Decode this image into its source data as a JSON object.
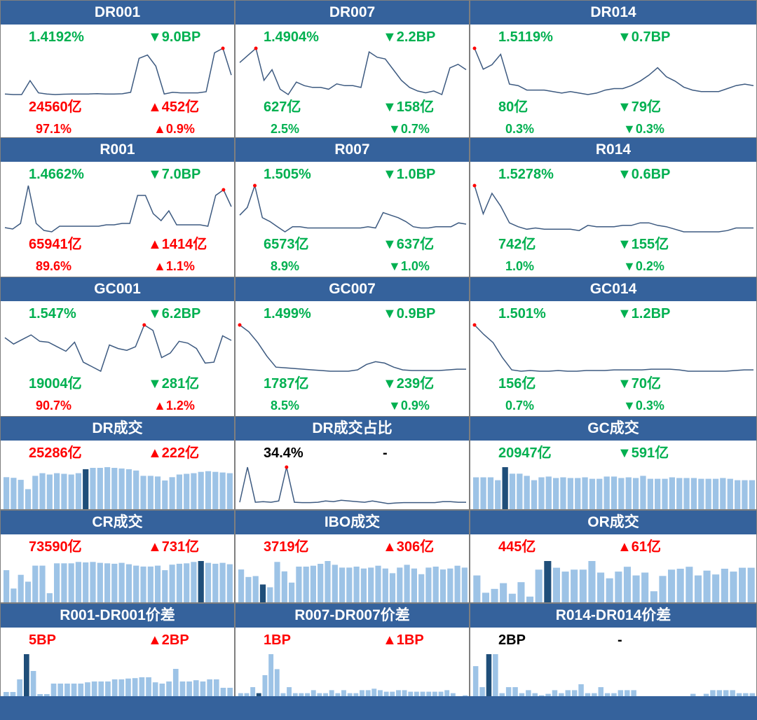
{
  "colors": {
    "header_bg": "#35629c",
    "up": "#ff0000",
    "down": "#00b050",
    "line": "#3d5a80",
    "bar": "#9dc3e6",
    "bar_highlight": "#1f4e79",
    "marker": "#ff0000"
  },
  "rate_panels": [
    {
      "title": "DR001",
      "rate": "1.4192%",
      "rate_change": "▼9.0BP",
      "volume": "24560亿",
      "volume_change": "▲452亿",
      "share": "97.1%",
      "share_change": "▲0.9%",
      "rate_color": "down",
      "change_color": "down",
      "volume_color": "up",
      "volume_change_color": "up",
      "share_color": "up",
      "share_change_color": "up"
    },
    {
      "title": "DR007",
      "rate": "1.4904%",
      "rate_change": "▼2.2BP",
      "volume": "627亿",
      "volume_change": "▼158亿",
      "share": "2.5%",
      "share_change": "▼0.7%",
      "rate_color": "down",
      "change_color": "down",
      "volume_color": "down",
      "volume_change_color": "down",
      "share_color": "down",
      "share_change_color": "down"
    },
    {
      "title": "DR014",
      "rate": "1.5119%",
      "rate_change": "▼0.7BP",
      "volume": "80亿",
      "volume_change": "▼79亿",
      "share": "0.3%",
      "share_change": "▼0.3%",
      "rate_color": "down",
      "change_color": "down",
      "volume_color": "down",
      "volume_change_color": "down",
      "share_color": "down",
      "share_change_color": "down"
    },
    {
      "title": "R001",
      "rate": "1.4662%",
      "rate_change": "▼7.0BP",
      "volume": "65941亿",
      "volume_change": "▲1414亿",
      "share": "89.6%",
      "share_change": "▲1.1%",
      "rate_color": "down",
      "change_color": "down",
      "volume_color": "up",
      "volume_change_color": "up",
      "share_color": "up",
      "share_change_color": "up"
    },
    {
      "title": "R007",
      "rate": "1.505%",
      "rate_change": "▼1.0BP",
      "volume": "6573亿",
      "volume_change": "▼637亿",
      "share": "8.9%",
      "share_change": "▼1.0%",
      "rate_color": "down",
      "change_color": "down",
      "volume_color": "down",
      "volume_change_color": "down",
      "share_color": "down",
      "share_change_color": "down"
    },
    {
      "title": "R014",
      "rate": "1.5278%",
      "rate_change": "▼0.6BP",
      "volume": "742亿",
      "volume_change": "▼155亿",
      "share": "1.0%",
      "share_change": "▼0.2%",
      "rate_color": "down",
      "change_color": "down",
      "volume_color": "down",
      "volume_change_color": "down",
      "share_color": "down",
      "share_change_color": "down"
    },
    {
      "title": "GC001",
      "rate": "1.547%",
      "rate_change": "▼6.2BP",
      "volume": "19004亿",
      "volume_change": "▼281亿",
      "share": "90.7%",
      "share_change": "▲1.2%",
      "rate_color": "down",
      "change_color": "down",
      "volume_color": "down",
      "volume_change_color": "down",
      "share_color": "up",
      "share_change_color": "up"
    },
    {
      "title": "GC007",
      "rate": "1.499%",
      "rate_change": "▼0.9BP",
      "volume": "1787亿",
      "volume_change": "▼239亿",
      "share": "8.5%",
      "share_change": "▼0.9%",
      "rate_color": "down",
      "change_color": "down",
      "volume_color": "down",
      "volume_change_color": "down",
      "share_color": "down",
      "share_change_color": "down"
    },
    {
      "title": "GC014",
      "rate": "1.501%",
      "rate_change": "▼1.2BP",
      "volume": "156亿",
      "volume_change": "▼70亿",
      "share": "0.7%",
      "share_change": "▼0.3%",
      "rate_color": "down",
      "change_color": "down",
      "volume_color": "down",
      "volume_change_color": "down",
      "share_color": "down",
      "share_change_color": "down"
    }
  ],
  "volume_panels": [
    {
      "title": "DR成交",
      "value": "25286亿",
      "change": "▲222亿",
      "value_color": "up",
      "change_color": "up"
    },
    {
      "title": "DR成交占比",
      "value": "34.4%",
      "change": "-",
      "value_color": "blk",
      "change_color": "blk"
    },
    {
      "title": "GC成交",
      "value": "20947亿",
      "change": "▼591亿",
      "value_color": "down",
      "change_color": "down"
    },
    {
      "title": "CR成交",
      "value": "73590亿",
      "change": "▲731亿",
      "value_color": "up",
      "change_color": "up"
    },
    {
      "title": "IBO成交",
      "value": "3719亿",
      "change": "▲306亿",
      "value_color": "up",
      "change_color": "up"
    },
    {
      "title": "OR成交",
      "value": "445亿",
      "change": "▲61亿",
      "value_color": "up",
      "change_color": "up"
    },
    {
      "title": "R001-DR001价差",
      "value": "5BP",
      "change": "▲2BP",
      "value_color": "up",
      "change_color": "up"
    },
    {
      "title": "R007-DR007价差",
      "value": "1BP",
      "change": "▲1BP",
      "value_color": "up",
      "change_color": "up"
    },
    {
      "title": "R014-DR014价差",
      "value": "2BP",
      "change": "-",
      "value_color": "blk",
      "change_color": "blk"
    }
  ],
  "chart_data": [
    {
      "type": "line",
      "name": "DR001",
      "values": [
        1.43,
        1.425,
        1.425,
        1.55,
        1.44,
        1.43,
        1.425,
        1.428,
        1.43,
        1.43,
        1.43,
        1.433,
        1.43,
        1.43,
        1.432,
        1.445,
        1.75,
        1.78,
        1.68,
        1.43,
        1.445,
        1.44,
        1.44,
        1.44,
        1.45,
        1.8,
        1.84,
        1.6
      ],
      "marker_index": 26
    },
    {
      "type": "line",
      "name": "DR007",
      "values": [
        1.62,
        1.66,
        1.7,
        1.52,
        1.58,
        1.47,
        1.44,
        1.51,
        1.49,
        1.48,
        1.48,
        1.47,
        1.5,
        1.49,
        1.49,
        1.48,
        1.68,
        1.65,
        1.64,
        1.58,
        1.52,
        1.48,
        1.46,
        1.45,
        1.46,
        1.44,
        1.59,
        1.61,
        1.58
      ],
      "marker_index": 2
    },
    {
      "type": "line",
      "name": "DR014",
      "values": [
        1.8,
        1.66,
        1.69,
        1.76,
        1.56,
        1.55,
        1.52,
        1.52,
        1.52,
        1.51,
        1.5,
        1.51,
        1.5,
        1.49,
        1.5,
        1.52,
        1.53,
        1.53,
        1.55,
        1.58,
        1.62,
        1.67,
        1.61,
        1.58,
        1.54,
        1.52,
        1.51,
        1.51,
        1.51,
        1.53,
        1.55,
        1.56,
        1.55
      ],
      "marker_index": 0
    },
    {
      "type": "line",
      "name": "R001",
      "values": [
        1.45,
        1.44,
        1.48,
        1.75,
        1.48,
        1.43,
        1.42,
        1.46,
        1.46,
        1.46,
        1.46,
        1.46,
        1.46,
        1.47,
        1.47,
        1.48,
        1.48,
        1.68,
        1.68,
        1.55,
        1.5,
        1.57,
        1.47,
        1.47,
        1.47,
        1.47,
        1.46,
        1.68,
        1.72,
        1.6
      ],
      "marker_index": 28
    },
    {
      "type": "line",
      "name": "R007",
      "values": [
        1.62,
        1.68,
        1.85,
        1.6,
        1.57,
        1.53,
        1.49,
        1.53,
        1.53,
        1.52,
        1.52,
        1.52,
        1.52,
        1.52,
        1.52,
        1.52,
        1.52,
        1.53,
        1.52,
        1.64,
        1.62,
        1.6,
        1.57,
        1.53,
        1.52,
        1.52,
        1.53,
        1.53,
        1.53,
        1.56,
        1.55
      ],
      "marker_index": 2
    },
    {
      "type": "line",
      "name": "R014",
      "values": [
        1.9,
        1.68,
        1.84,
        1.74,
        1.61,
        1.58,
        1.56,
        1.57,
        1.56,
        1.56,
        1.56,
        1.56,
        1.55,
        1.59,
        1.58,
        1.58,
        1.58,
        1.59,
        1.59,
        1.61,
        1.61,
        1.59,
        1.58,
        1.56,
        1.54,
        1.54,
        1.54,
        1.54,
        1.54,
        1.55,
        1.57,
        1.57,
        1.57
      ],
      "marker_index": 0
    },
    {
      "type": "line",
      "name": "GC001",
      "values": [
        1.62,
        1.55,
        1.6,
        1.65,
        1.58,
        1.57,
        1.52,
        1.47,
        1.57,
        1.35,
        1.3,
        1.25,
        1.54,
        1.5,
        1.48,
        1.52,
        1.76,
        1.7,
        1.4,
        1.45,
        1.58,
        1.56,
        1.5,
        1.34,
        1.35,
        1.64,
        1.59
      ],
      "marker_index": 16
    },
    {
      "type": "line",
      "name": "GC007",
      "values": [
        1.87,
        1.82,
        1.74,
        1.64,
        1.56,
        1.555,
        1.55,
        1.545,
        1.54,
        1.535,
        1.53,
        1.53,
        1.53,
        1.54,
        1.58,
        1.6,
        1.59,
        1.56,
        1.54,
        1.535,
        1.535,
        1.535,
        1.535,
        1.54,
        1.545,
        1.545
      ],
      "marker_index": 0
    },
    {
      "type": "line",
      "name": "GC014",
      "values": [
        1.89,
        1.82,
        1.76,
        1.65,
        1.56,
        1.55,
        1.555,
        1.55,
        1.55,
        1.555,
        1.55,
        1.55,
        1.555,
        1.555,
        1.555,
        1.56,
        1.56,
        1.56,
        1.56,
        1.565,
        1.565,
        1.565,
        1.56,
        1.55,
        1.55,
        1.55,
        1.55,
        1.55,
        1.555,
        1.56,
        1.56
      ],
      "marker_index": 0
    },
    {
      "type": "bar",
      "name": "DR成交",
      "values": [
        24000,
        23500,
        22000,
        15000,
        25000,
        27000,
        26000,
        27000,
        26500,
        26000,
        27000,
        30000,
        31000,
        31000,
        31500,
        31000,
        30500,
        30000,
        29000,
        25000,
        25000,
        24500,
        21500,
        24000,
        26000,
        26500,
        27000,
        28000,
        28500,
        28000,
        27500,
        27000
      ],
      "highlight_index": 11
    },
    {
      "type": "line",
      "name": "DR成交占比",
      "values": [
        2,
        55,
        2,
        3,
        2,
        4,
        55,
        2,
        1.5,
        1.5,
        2,
        4,
        3,
        5,
        4,
        3,
        2,
        4,
        2,
        0,
        1,
        1.5,
        1.5,
        1.5,
        1.5,
        1.5,
        3,
        3,
        2,
        2
      ],
      "marker_index": 6
    },
    {
      "type": "bar",
      "name": "GC成交",
      "values": [
        22000,
        22000,
        22000,
        20000,
        29000,
        24500,
        24500,
        23000,
        20000,
        22000,
        22500,
        21500,
        22000,
        21500,
        21500,
        22000,
        21000,
        21000,
        22500,
        22500,
        21500,
        22000,
        21500,
        23000,
        21000,
        21000,
        21000,
        22000,
        21500,
        21500,
        21500,
        21000,
        21000,
        21000,
        21500,
        21000,
        20000,
        20000,
        20000
      ],
      "highlight_index": 4
    },
    {
      "type": "bar",
      "name": "CR成交",
      "values": [
        70000,
        30000,
        60000,
        45000,
        80000,
        80000,
        20000,
        85000,
        85000,
        85000,
        88000,
        87000,
        88000,
        86000,
        85000,
        84000,
        86000,
        83000,
        80000,
        78000,
        78000,
        80000,
        70000,
        82000,
        84000,
        85000,
        88000,
        90000,
        86000,
        84000,
        86000,
        83000
      ],
      "highlight_index": 27
    },
    {
      "type": "bar",
      "name": "IBO成交",
      "values": [
        3500,
        2700,
        2800,
        1900,
        1600,
        4300,
        3300,
        2100,
        3800,
        3800,
        3900,
        4100,
        4400,
        4000,
        3700,
        3700,
        3800,
        3600,
        3700,
        3900,
        3600,
        3100,
        3700,
        4000,
        3600,
        3000,
        3700,
        3800,
        3500,
        3600,
        3900,
        3700
      ],
      "highlight_index": 3
    },
    {
      "type": "bar",
      "name": "OR成交",
      "values": [
        560,
        200,
        280,
        400,
        180,
        420,
        120,
        680,
        860,
        720,
        640,
        680,
        680,
        860,
        620,
        500,
        640,
        740,
        560,
        620,
        230,
        550,
        680,
        700,
        740,
        560,
        660,
        580,
        700,
        640,
        720,
        720
      ],
      "highlight_index": 8
    },
    {
      "type": "bar",
      "name": "R001-DR001价差",
      "values": [
        1,
        1,
        4,
        10,
        6,
        0.5,
        0.5,
        3,
        3,
        3,
        3,
        3,
        3.3,
        3.5,
        3.5,
        3.5,
        4,
        4,
        4.2,
        4.3,
        4.5,
        4.5,
        3.3,
        3,
        3.5,
        6.5,
        3.5,
        3.5,
        3.8,
        3.5,
        4,
        4,
        2,
        2
      ],
      "highlight_index": 3
    },
    {
      "type": "bar",
      "name": "R007-DR007价差",
      "values": [
        1,
        1,
        3,
        1,
        7,
        14,
        9,
        1,
        3,
        1,
        1,
        1,
        2,
        1,
        1,
        2,
        1,
        2,
        1,
        1,
        2,
        2,
        2.5,
        2,
        1.5,
        1.5,
        2,
        2,
        1.5,
        1.5,
        1.5,
        1.5,
        1.5,
        1.5,
        2,
        1,
        0,
        0.3
      ],
      "highlight_index": 3
    },
    {
      "type": "bar",
      "name": "R014-DR014价差",
      "values": [
        10,
        3,
        14,
        14,
        1,
        3,
        3,
        1,
        2,
        1,
        0.3,
        0.8,
        2,
        1,
        2,
        2,
        4,
        1,
        1,
        3,
        1,
        1,
        2,
        2,
        2,
        0,
        0,
        0,
        0,
        0,
        0,
        0,
        0,
        0.8,
        0,
        0.8,
        2,
        2,
        2,
        2,
        1,
        1,
        1
      ],
      "highlight_index": 2
    }
  ]
}
